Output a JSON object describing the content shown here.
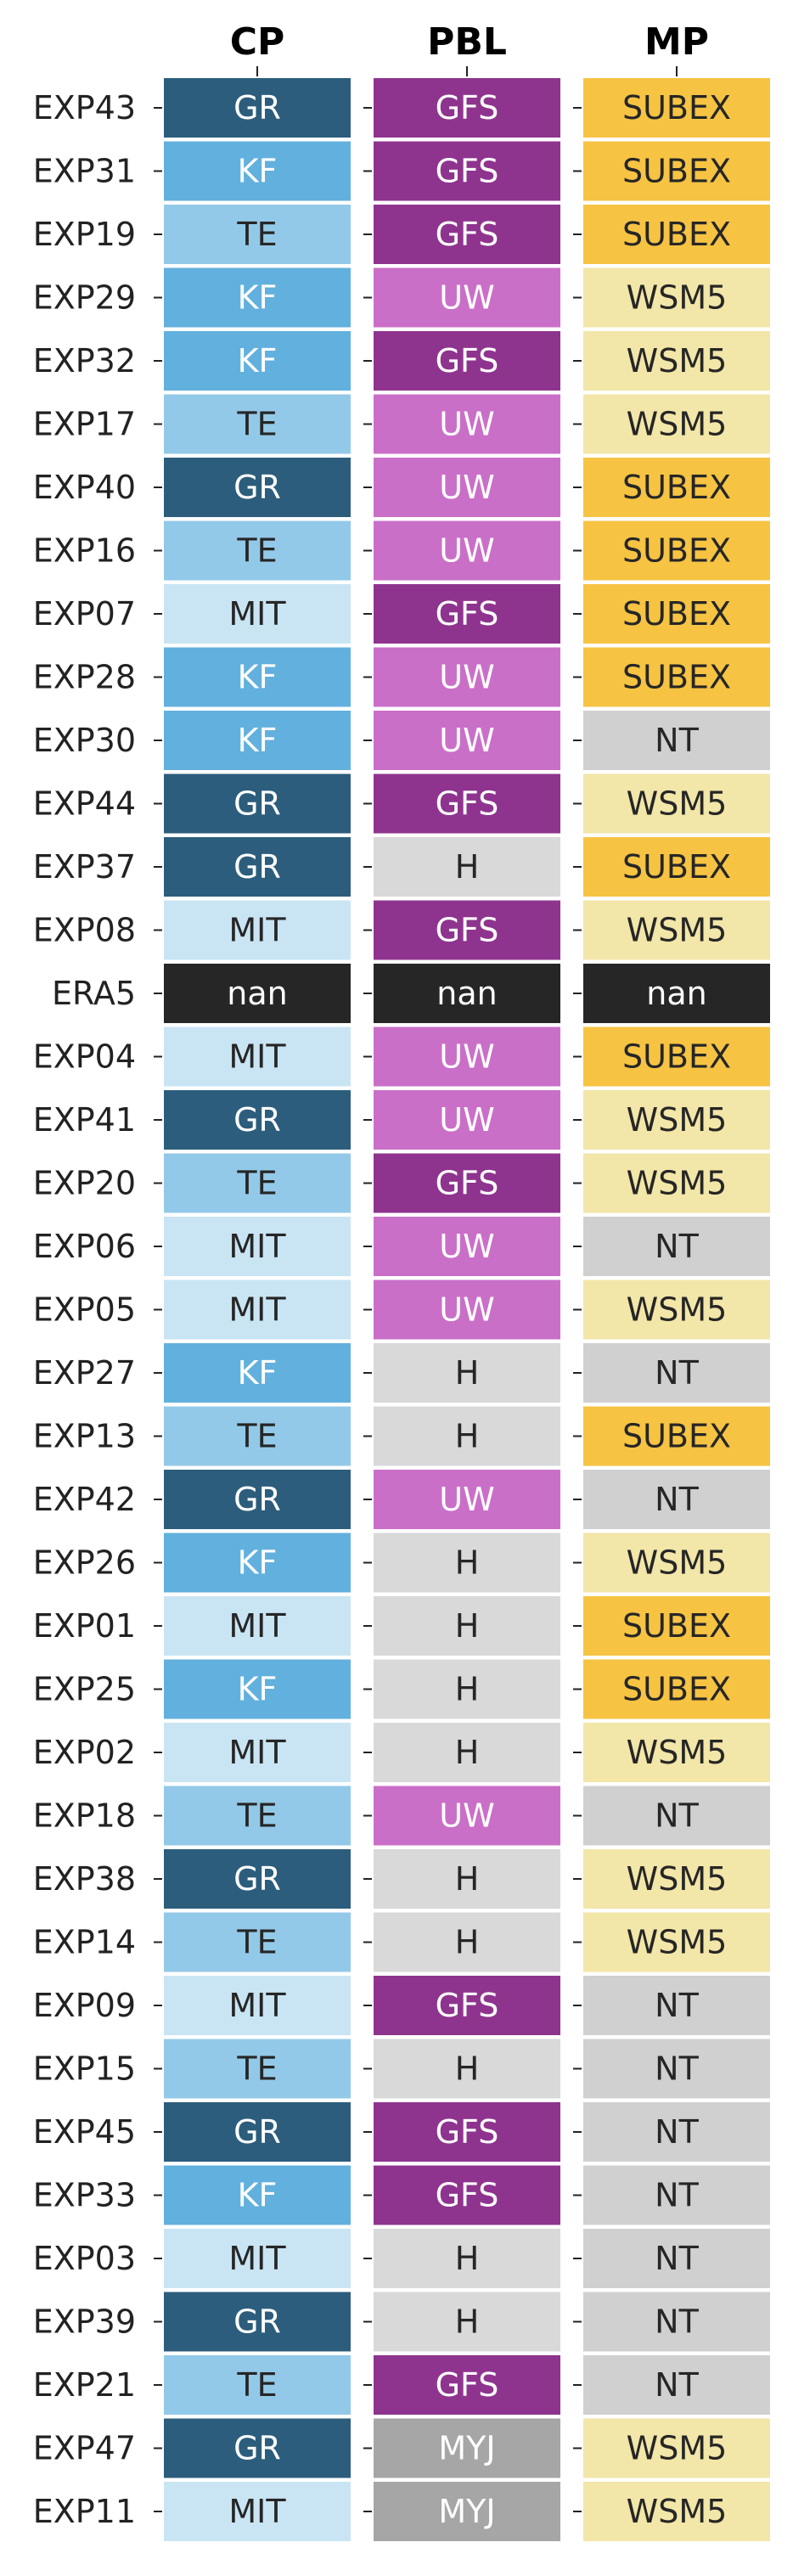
{
  "chart_data": {
    "type": "table",
    "columns": [
      "CP",
      "PBL",
      "MP"
    ],
    "rows": [
      {
        "label": "EXP43",
        "values": [
          "GR",
          "GFS",
          "SUBEX"
        ]
      },
      {
        "label": "EXP31",
        "values": [
          "KF",
          "GFS",
          "SUBEX"
        ]
      },
      {
        "label": "EXP19",
        "values": [
          "TE",
          "GFS",
          "SUBEX"
        ]
      },
      {
        "label": "EXP29",
        "values": [
          "KF",
          "UW",
          "WSM5"
        ]
      },
      {
        "label": "EXP32",
        "values": [
          "KF",
          "GFS",
          "WSM5"
        ]
      },
      {
        "label": "EXP17",
        "values": [
          "TE",
          "UW",
          "WSM5"
        ]
      },
      {
        "label": "EXP40",
        "values": [
          "GR",
          "UW",
          "SUBEX"
        ]
      },
      {
        "label": "EXP16",
        "values": [
          "TE",
          "UW",
          "SUBEX"
        ]
      },
      {
        "label": "EXP07",
        "values": [
          "MIT",
          "GFS",
          "SUBEX"
        ]
      },
      {
        "label": "EXP28",
        "values": [
          "KF",
          "UW",
          "SUBEX"
        ]
      },
      {
        "label": "EXP30",
        "values": [
          "KF",
          "UW",
          "NT"
        ]
      },
      {
        "label": "EXP44",
        "values": [
          "GR",
          "GFS",
          "WSM5"
        ]
      },
      {
        "label": "EXP37",
        "values": [
          "GR",
          "H",
          "SUBEX"
        ]
      },
      {
        "label": "EXP08",
        "values": [
          "MIT",
          "GFS",
          "WSM5"
        ]
      },
      {
        "label": "ERA5",
        "values": [
          "nan",
          "nan",
          "nan"
        ]
      },
      {
        "label": "EXP04",
        "values": [
          "MIT",
          "UW",
          "SUBEX"
        ]
      },
      {
        "label": "EXP41",
        "values": [
          "GR",
          "UW",
          "WSM5"
        ]
      },
      {
        "label": "EXP20",
        "values": [
          "TE",
          "GFS",
          "WSM5"
        ]
      },
      {
        "label": "EXP06",
        "values": [
          "MIT",
          "UW",
          "NT"
        ]
      },
      {
        "label": "EXP05",
        "values": [
          "MIT",
          "UW",
          "WSM5"
        ]
      },
      {
        "label": "EXP27",
        "values": [
          "KF",
          "H",
          "NT"
        ]
      },
      {
        "label": "EXP13",
        "values": [
          "TE",
          "H",
          "SUBEX"
        ]
      },
      {
        "label": "EXP42",
        "values": [
          "GR",
          "UW",
          "NT"
        ]
      },
      {
        "label": "EXP26",
        "values": [
          "KF",
          "H",
          "WSM5"
        ]
      },
      {
        "label": "EXP01",
        "values": [
          "MIT",
          "H",
          "SUBEX"
        ]
      },
      {
        "label": "EXP25",
        "values": [
          "KF",
          "H",
          "SUBEX"
        ]
      },
      {
        "label": "EXP02",
        "values": [
          "MIT",
          "H",
          "WSM5"
        ]
      },
      {
        "label": "EXP18",
        "values": [
          "TE",
          "UW",
          "NT"
        ]
      },
      {
        "label": "EXP38",
        "values": [
          "GR",
          "H",
          "WSM5"
        ]
      },
      {
        "label": "EXP14",
        "values": [
          "TE",
          "H",
          "WSM5"
        ]
      },
      {
        "label": "EXP09",
        "values": [
          "MIT",
          "GFS",
          "NT"
        ]
      },
      {
        "label": "EXP15",
        "values": [
          "TE",
          "H",
          "NT"
        ]
      },
      {
        "label": "EXP45",
        "values": [
          "GR",
          "GFS",
          "NT"
        ]
      },
      {
        "label": "EXP33",
        "values": [
          "KF",
          "GFS",
          "NT"
        ]
      },
      {
        "label": "EXP03",
        "values": [
          "MIT",
          "H",
          "NT"
        ]
      },
      {
        "label": "EXP39",
        "values": [
          "GR",
          "H",
          "NT"
        ]
      },
      {
        "label": "EXP21",
        "values": [
          "TE",
          "GFS",
          "NT"
        ]
      },
      {
        "label": "EXP47",
        "values": [
          "GR",
          "MYJ",
          "WSM5"
        ]
      },
      {
        "label": "EXP11",
        "values": [
          "MIT",
          "MYJ",
          "WSM5"
        ]
      }
    ],
    "category_colors": {
      "GR": "#2c5d7c",
      "KF": "#62b0dd",
      "TE": "#93c9e8",
      "MIT": "#c9e5f4",
      "GFS": "#8e348e",
      "UW": "#ca6fc8",
      "H": "#d9d9d9",
      "MYJ": "#a6a6a6",
      "SUBEX": "#f6c343",
      "WSM5": "#f2e6a8",
      "NT": "#d0d0d0",
      "nan": "#262626"
    },
    "text_colors": {
      "light": "#ffffff",
      "dark": "#262626"
    },
    "light_text_categories": [
      "GR",
      "KF",
      "GFS",
      "UW",
      "MYJ",
      "nan"
    ]
  }
}
